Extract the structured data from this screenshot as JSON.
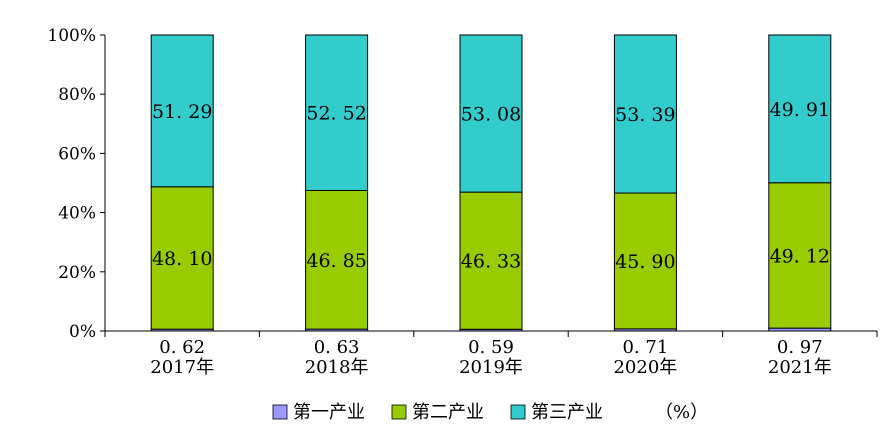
{
  "chart_data": {
    "type": "bar",
    "stacked": true,
    "percent_stacked": true,
    "categories": [
      "2017年",
      "2018年",
      "2019年",
      "2020年",
      "2021年"
    ],
    "series": [
      {
        "name": "第一产业",
        "values": [
          0.62,
          0.63,
          0.59,
          0.71,
          0.97
        ],
        "color": "#9999ff"
      },
      {
        "name": "第二产业",
        "values": [
          48.1,
          46.85,
          46.33,
          45.9,
          49.12
        ],
        "color": "#99cc00"
      },
      {
        "name": "第三产业",
        "values": [
          51.29,
          52.52,
          53.08,
          53.39,
          49.91
        ],
        "color": "#33cccc"
      }
    ],
    "labels": {
      "first": [
        "0. 62",
        "0. 63",
        "0. 59",
        "0. 71",
        "0. 97"
      ],
      "second": [
        "48. 10",
        "46. 85",
        "46. 33",
        "45. 90",
        "49. 12"
      ],
      "third": [
        "51. 29",
        "52. 52",
        "53. 08",
        "53. 39",
        "49. 91"
      ]
    },
    "y_ticks": [
      "0%",
      "20%",
      "40%",
      "60%",
      "80%",
      "100%"
    ],
    "ylim": [
      0,
      100
    ],
    "unit_label": "（%）",
    "legend_position": "bottom",
    "grid": false
  }
}
